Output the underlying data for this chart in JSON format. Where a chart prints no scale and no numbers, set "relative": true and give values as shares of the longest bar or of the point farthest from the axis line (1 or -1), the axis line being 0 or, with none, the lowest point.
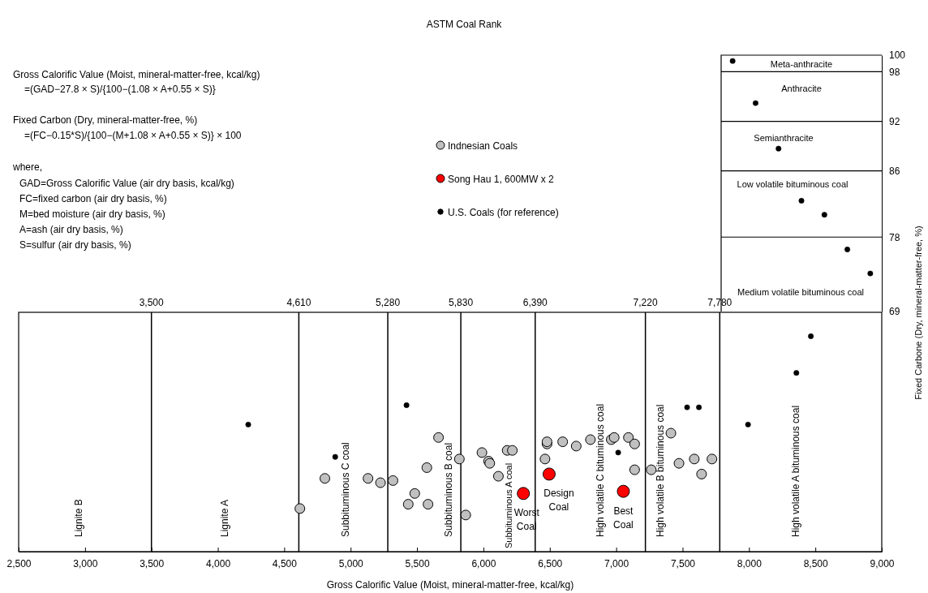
{
  "chart_data": [
    {
      "type": "scatter",
      "ylabel": "Fixed Carbone (Dry, mineral-matter-free, %)",
      "categories": [
        null,
        null,
        null,
        null,
        null,
        null,
        null
      ],
      "ylim": [
        69,
        100
      ],
      "yticks": [
        69,
        78,
        86,
        92,
        98,
        100
      ],
      "tick_labels": "y",
      "marker": "circle",
      "ref_lines": [
        {
          "axis": "y",
          "value": 98
        },
        {
          "axis": "y",
          "value": 92
        },
        {
          "axis": "y",
          "value": 86
        },
        {
          "axis": "y",
          "value": 78
        }
      ],
      "annotations": [
        "Meta-anthracite",
        "Anthracite",
        "Semianthracite",
        "Low volatile bituminous coal",
        "Medium volatile bituminous coal"
      ],
      "series": [
        {
          "color": "#000000",
          "values": [
            99.3,
            94.2,
            88.7,
            82.4,
            80.7,
            76.5,
            73.6
          ]
        }
      ]
    },
    {
      "type": "scatter",
      "xlabel": "Gross Calorific Value (Moist, mineral-matter-free, kcal/kg)",
      "relative": true,
      "xlim": [
        2500,
        9000
      ],
      "xticks": [
        {
          "value": 2500,
          "label": "2,500"
        },
        {
          "value": 3000,
          "label": "3,000"
        },
        {
          "value": 3500,
          "label": "3,500"
        },
        {
          "value": 4000,
          "label": "4,000"
        },
        {
          "value": 4500,
          "label": "4,500"
        },
        {
          "value": 5000,
          "label": "5,000"
        },
        {
          "value": 5500,
          "label": "5,500"
        },
        {
          "value": 6000,
          "label": "6,000"
        },
        {
          "value": 6500,
          "label": "6,500"
        },
        {
          "value": 7000,
          "label": "7,000"
        },
        {
          "value": 7500,
          "label": "7,500"
        },
        {
          "value": 8000,
          "label": "8,000"
        },
        {
          "value": 8500,
          "label": "8,500"
        },
        {
          "value": 9000,
          "label": "9,000"
        }
      ],
      "marker": "circle",
      "legend": "top",
      "ref_lines": [
        {
          "axis": "x",
          "value": 3500,
          "label": "3,500"
        },
        {
          "axis": "x",
          "value": 4610,
          "label": "4,610"
        },
        {
          "axis": "x",
          "value": 5280,
          "label": "5,280"
        },
        {
          "axis": "x",
          "value": 5830,
          "label": "5,830"
        },
        {
          "axis": "x",
          "value": 6390,
          "label": "6,390"
        },
        {
          "axis": "x",
          "value": 7220,
          "label": "7,220"
        },
        {
          "axis": "x",
          "value": 7780,
          "label": "7,780"
        }
      ],
      "annotations": [
        "Gross Calorific Value (Moist, mineral-matter-free, kcal/kg)",
        "=(GAD−27.8 × S)/{100−(1.08 × A+0.55 × S)}",
        "Fixed Carbon (Dry, mineral-matter-free, %)",
        "=(FC−0.15*S)/{100−(M+1.08 × A+0.55 × S)}  × 100",
        "where,",
        "GAD=Gross Calorific Value (air dry basis, kcal/kg)",
        "FC=fixed carbon (air dry basis, %)",
        "M=bed moisture (air dry basis, %)",
        "A=ash (air dry basis, %)",
        "S=sulfur (air dry basis, %)",
        "Lignite B",
        "Lignite A",
        "Subbituminous C coal",
        "Subbituminous B coal",
        "Subbituminous A coal",
        "High volatile C bituminous coal",
        "High volatile B bituminous coal",
        "High volatile A bituminous coal",
        "ASTM Coal Rank",
        {
          "text": "Worst Coal",
          "x": 6301,
          "y": 0.27
        },
        {
          "text": "Design Coal",
          "x": 6495,
          "y": 0.36
        },
        {
          "text": "Best Coal",
          "x": 7054,
          "y": 0.28
        }
      ],
      "series": [
        {
          "name": "Indnesian Coals",
          "color": "#c0c0c0",
          "x": [
            4618,
            4806,
            5131,
            5225,
            5319,
            5434,
            5483,
            5574,
            5583,
            5662,
            5819,
            5867,
            5989,
            6039,
            6048,
            6113,
            6179,
            6218,
            6464,
            6479,
            6479,
            6597,
            6699,
            6806,
            6963,
            6985,
            7092,
            7139,
            7139,
            7264,
            7412,
            7473,
            7588,
            7643,
            7721
          ],
          "values": [
            0.2,
            0.34,
            0.34,
            0.32,
            0.33,
            0.22,
            0.27,
            0.39,
            0.22,
            0.53,
            0.43,
            0.17,
            0.46,
            0.42,
            0.41,
            0.35,
            0.47,
            0.47,
            0.43,
            0.5,
            0.51,
            0.51,
            0.49,
            0.52,
            0.52,
            0.53,
            0.53,
            0.5,
            0.38,
            0.38,
            0.55,
            0.41,
            0.43,
            0.36,
            0.43
          ]
        },
        {
          "name": "Song Hau 1, 600MW x 2",
          "color": "#ff0000",
          "x": [
            6301,
            6495,
            7054
          ],
          "values": [
            0.27,
            0.36,
            0.28
          ]
        },
        {
          "name": "U.S. Coals (for reference)",
          "color": "#000000",
          "x": [
            4229,
            4884,
            5421,
            7015,
            7534,
            7623,
            7993,
            8357,
            8466
          ],
          "values": [
            0.59,
            0.44,
            0.68,
            0.46,
            0.67,
            0.67,
            0.59,
            0.83,
            1
          ]
        }
      ]
    }
  ]
}
